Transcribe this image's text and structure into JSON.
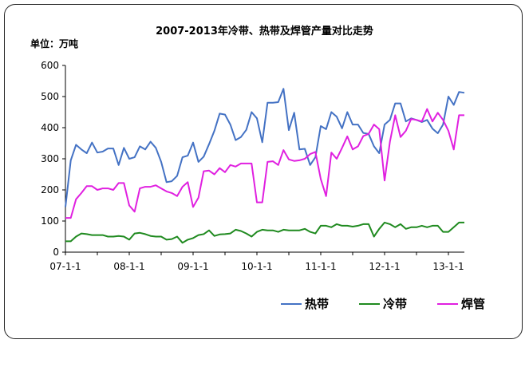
{
  "chart_data": {
    "type": "line",
    "title": "2007-2013年冷带、热带及焊管产量对比走势",
    "unit_label": "单位：万吨",
    "ylim": [
      0,
      600
    ],
    "y_ticks": [
      0,
      100,
      200,
      300,
      400,
      500,
      600
    ],
    "x_ticks": [
      {
        "label": "07-1-1",
        "index": 0
      },
      {
        "label": "08-1-1",
        "index": 12
      },
      {
        "label": "09-1-1",
        "index": 24
      },
      {
        "label": "10-1-1",
        "index": 36
      },
      {
        "label": "11-1-1",
        "index": 48
      },
      {
        "label": "12-1-1",
        "index": 60
      },
      {
        "label": "13-1-1",
        "index": 72
      }
    ],
    "n_points": 76,
    "legend_position": "bottom-right",
    "series": [
      {
        "name": "热带",
        "color": "#4472C4",
        "values": [
          145,
          295,
          345,
          330,
          318,
          352,
          320,
          323,
          333,
          333,
          280,
          335,
          300,
          305,
          340,
          330,
          355,
          335,
          290,
          225,
          228,
          245,
          305,
          310,
          352,
          290,
          307,
          347,
          390,
          445,
          442,
          410,
          360,
          370,
          393,
          450,
          430,
          353,
          480,
          480,
          482,
          525,
          392,
          448,
          330,
          332,
          280,
          305,
          405,
          395,
          450,
          435,
          398,
          450,
          410,
          410,
          383,
          380,
          340,
          318,
          410,
          425,
          478,
          478,
          420,
          430,
          425,
          418,
          425,
          397,
          382,
          410,
          500,
          473,
          515,
          512
        ]
      },
      {
        "name": "冷带",
        "color": "#1F8A1F",
        "values": [
          35,
          35,
          50,
          60,
          58,
          55,
          55,
          55,
          50,
          50,
          52,
          50,
          40,
          60,
          62,
          58,
          52,
          50,
          50,
          40,
          42,
          50,
          30,
          40,
          45,
          55,
          58,
          70,
          52,
          57,
          58,
          60,
          72,
          68,
          60,
          50,
          65,
          72,
          70,
          70,
          65,
          72,
          70,
          70,
          70,
          75,
          65,
          60,
          85,
          85,
          80,
          90,
          85,
          85,
          82,
          85,
          90,
          90,
          50,
          75,
          95,
          90,
          80,
          90,
          75,
          80,
          80,
          85,
          80,
          85,
          85,
          65,
          65,
          80,
          95,
          95
        ]
      },
      {
        "name": "焊管",
        "color": "#E020E0",
        "values": [
          110,
          110,
          170,
          190,
          212,
          212,
          200,
          205,
          205,
          200,
          222,
          222,
          150,
          130,
          205,
          210,
          210,
          215,
          205,
          195,
          190,
          180,
          210,
          225,
          145,
          175,
          260,
          262,
          250,
          270,
          257,
          280,
          275,
          285,
          285,
          285,
          160,
          160,
          290,
          292,
          280,
          328,
          298,
          293,
          295,
          300,
          315,
          322,
          235,
          180,
          320,
          300,
          335,
          372,
          330,
          340,
          373,
          380,
          410,
          395,
          230,
          355,
          440,
          370,
          390,
          428,
          425,
          420,
          460,
          420,
          448,
          425,
          390,
          330,
          440,
          440
        ]
      }
    ]
  }
}
